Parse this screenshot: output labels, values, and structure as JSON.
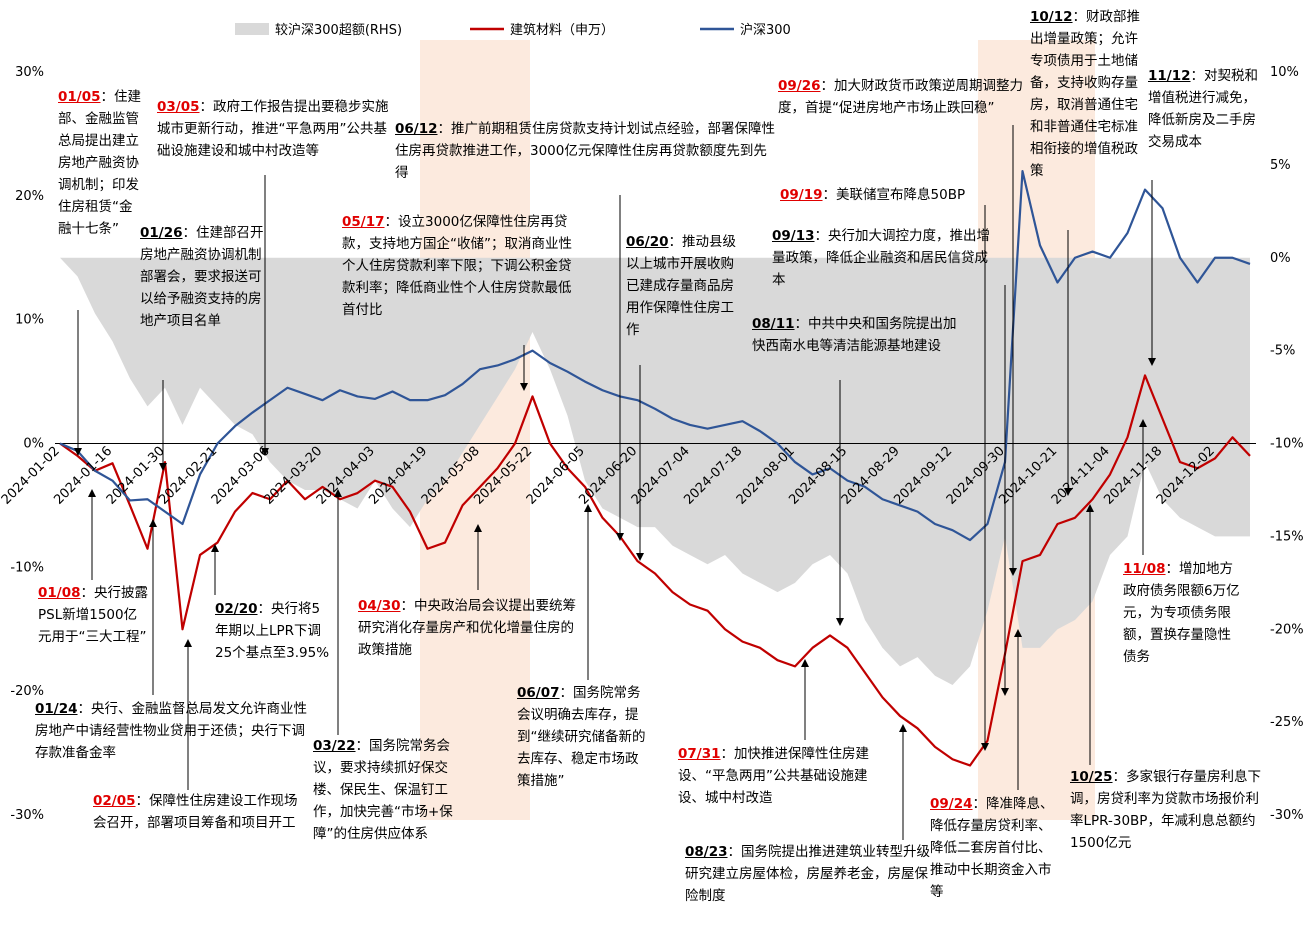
{
  "chart_data": {
    "type": "line",
    "categories": [
      "2024-01-02",
      null,
      null,
      "2024-01-16",
      null,
      null,
      "2024-01-30",
      null,
      null,
      "2024-02-21",
      null,
      null,
      "2024-03-06",
      null,
      null,
      "2024-03-20",
      null,
      null,
      "2024-04-03",
      null,
      null,
      "2024-04-19",
      null,
      null,
      "2024-05-08",
      null,
      null,
      "2024-05-22",
      null,
      null,
      "2024-06-05",
      null,
      null,
      "2024-06-20",
      null,
      null,
      "2024-07-04",
      null,
      null,
      "2024-07-18",
      null,
      null,
      "2024-08-01",
      null,
      null,
      "2024-08-15",
      null,
      null,
      "2024-08-29",
      null,
      null,
      "2024-09-12",
      null,
      null,
      "2024-09-30",
      null,
      null,
      "2024-10-21",
      null,
      null,
      "2024-11-04",
      null,
      null,
      "2024-11-18",
      null,
      null,
      "2024-12-02",
      null,
      null
    ],
    "series": [
      {
        "name": "较沪深300超额(RHS)",
        "type": "area",
        "axis": "y2",
        "color": "#d9d9d9",
        "values": [
          0,
          -1,
          -3,
          -4.5,
          -6.5,
          -8,
          -7,
          -9,
          -7,
          -8,
          -9,
          -9.5,
          -11,
          -12,
          -12.5,
          -12.5,
          -13,
          -13.5,
          -12,
          -13.5,
          -14.5,
          -13,
          -12,
          -10.5,
          -9,
          -7.5,
          -6,
          -4,
          -6,
          -8.5,
          -12,
          -13.5,
          -14,
          -14.5,
          -14.5,
          -15.5,
          -16,
          -16.5,
          -16,
          -17,
          -17.5,
          -18,
          -17.5,
          -16.5,
          -16,
          -17,
          -19.5,
          -21,
          -22,
          -21.5,
          -22.5,
          -23,
          -22,
          -19,
          -15,
          -21,
          -21,
          -20,
          -19.5,
          -18.5,
          -16,
          -15,
          -11,
          -13,
          -14,
          -14.5,
          -15,
          -15,
          -15
        ]
      },
      {
        "name": "建筑材料（申万）",
        "type": "line",
        "color": "#c00000",
        "values": [
          0,
          -1,
          -2.2,
          -1.6,
          -5,
          -8.5,
          -1.5,
          -15,
          -9,
          -8,
          -5.5,
          -4,
          -4.5,
          -3,
          -4.5,
          -3.5,
          -4.5,
          -4,
          -3,
          -3.5,
          -5.5,
          -8.5,
          -8,
          -5,
          -3.5,
          -2,
          0,
          3.8,
          0,
          -2,
          -3.5,
          -6,
          -7.5,
          -9.5,
          -10.5,
          -12,
          -13,
          -13.5,
          -15,
          -16,
          -16.5,
          -17.5,
          -18,
          -16.5,
          -15.5,
          -16.5,
          -18.5,
          -20.5,
          -22,
          -23,
          -24.5,
          -25.5,
          -26,
          -24,
          -17,
          -9.5,
          -9,
          -6.5,
          -6,
          -4.5,
          -2.5,
          0.5,
          5.5,
          2,
          -1.5,
          -2,
          -1.2,
          0.5,
          -1
        ]
      },
      {
        "name": "沪深300",
        "type": "line",
        "color": "#2f5597",
        "values": [
          0,
          -0.6,
          -2.2,
          -3,
          -4.6,
          -4.5,
          -5.5,
          -6.5,
          -2.5,
          0,
          1.4,
          2.5,
          3.5,
          4.5,
          4,
          3.5,
          4.3,
          3.8,
          3.6,
          4.2,
          3.5,
          3.5,
          3.9,
          4.8,
          6,
          6.3,
          6.8,
          7.5,
          6.5,
          5.8,
          5,
          4.3,
          3.8,
          3.5,
          2.8,
          2,
          1.5,
          1.2,
          1.5,
          1.8,
          1,
          0,
          -1.5,
          -2.5,
          -2,
          -3,
          -3.5,
          -4.5,
          -5,
          -5.5,
          -6.5,
          -7,
          -7.8,
          -6.5,
          -1.5,
          22,
          16,
          13,
          15,
          15.5,
          15,
          17,
          20.5,
          19,
          15,
          13,
          15,
          15,
          14.5
        ]
      }
    ],
    "ylim": [
      -30,
      30
    ],
    "yticks": [
      {
        "value": 30,
        "label": "30%"
      },
      {
        "value": 20,
        "label": "20%"
      },
      {
        "value": 10,
        "label": "10%"
      },
      {
        "value": 0,
        "label": "0%"
      },
      {
        "value": -10,
        "label": "-10%"
      },
      {
        "value": -20,
        "label": "-20%"
      },
      {
        "value": -30,
        "label": "-30%"
      }
    ],
    "y2lim": [
      -30,
      10
    ],
    "y2ticks": [
      {
        "value": 10,
        "label": "10%"
      },
      {
        "value": 5,
        "label": "5%"
      },
      {
        "value": 0,
        "label": "0%"
      },
      {
        "value": -5,
        "label": "-5%"
      },
      {
        "value": -10,
        "label": "-10%"
      },
      {
        "value": -15,
        "label": "-15%"
      },
      {
        "value": -20,
        "label": "-20%"
      },
      {
        "value": -25,
        "label": "-25%"
      },
      {
        "value": -30,
        "label": "-30%"
      }
    ],
    "annotations": [
      {
        "date": "01/05",
        "color": "#e00000",
        "text": "：住建部、金融监管总局提出建立房地产融资协调机制；印发住房租赁“金融十七条”"
      },
      {
        "date": "03/05",
        "color": "#e00000",
        "text": "：政府工作报告提出要稳步实施城市更新行动，推进“平急两用”公共基础设施建设和城中村改造等"
      },
      {
        "date": "06/12",
        "color": "#000000",
        "text": "：推广前期租赁住房贷款支持计划试点经验，部署保障性住房再贷款推进工作，3000亿元保障性住房再贷款额度先到先得"
      },
      {
        "date": "01/26",
        "color": "#000000",
        "text": "：住建部召开房地产融资协调机制部署会，要求报送可以给予融资支持的房地产项目名单"
      },
      {
        "date": "05/17",
        "color": "#e00000",
        "text": "：设立3000亿保障性住房再贷款，支持地方国企“收储”；取消商业性个人住房贷款利率下限；下调公积金贷款利率；降低商业性个人住房贷款最低首付比"
      },
      {
        "date": "06/20",
        "color": "#000000",
        "text": "：推动县级以上城市开展收购已建成存量商品房用作保障性住房工作"
      },
      {
        "date": "09/26",
        "color": "#e00000",
        "text": "：加大财政货币政策逆周期调整力度，首提“促进房地产市场止跌回稳”"
      },
      {
        "date": "09/19",
        "color": "#e00000",
        "text": "：美联储宣布降息50BP"
      },
      {
        "date": "09/13",
        "color": "#000000",
        "text": "：央行加大调控力度，推出增量政策，降低企业融资和居民信贷成本"
      },
      {
        "date": "08/11",
        "color": "#000000",
        "text": "：中共中央和国务院提出加快西南水电等清洁能源基地建设"
      },
      {
        "date": "10/12",
        "color": "#000000",
        "text": "：财政部推出增量政策；允许专项债用于土地储备，支持收购存量房，取消普通住宅和非普通住宅标准相衔接的增值税政策"
      },
      {
        "date": "11/12",
        "color": "#000000",
        "text": "：对契税和增值税进行减免，降低新房及二手房交易成本"
      },
      {
        "date": "01/08",
        "color": "#e00000",
        "text": "：央行披露PSL新增1500亿元用于“三大工程”"
      },
      {
        "date": "02/20",
        "color": "#000000",
        "text": "：央行将5年期以上LPR下调25个基点至3.95%"
      },
      {
        "date": "04/30",
        "color": "#e00000",
        "text": "：中央政治局会议提出要统筹研究消化存量房产和优化增量住房的政策措施"
      },
      {
        "date": "01/24",
        "color": "#000000",
        "text": "：央行、金融监督总局发文允许商业性房地产中请经营性物业贷用于还债；央行下调存款准备金率"
      },
      {
        "date": "02/05",
        "color": "#e00000",
        "text": "：保障性住房建设工作现场会召开，部署项目筹备和项目开工"
      },
      {
        "date": "03/22",
        "color": "#000000",
        "text": "：国务院常务会议，要求持续抓好保交楼、保民生、保温钉工作，加快完善“市场+保障”的住房供应体系"
      },
      {
        "date": "06/07",
        "color": "#000000",
        "text": "：国务院常务会议明确去库存，提到“继续研究储备新的去库存、稳定市场政策措施”"
      },
      {
        "date": "07/31",
        "color": "#e00000",
        "text": "：加快推进保障性住房建设、“平急两用”公共基础设施建设、城中村改造"
      },
      {
        "date": "08/23",
        "color": "#000000",
        "text": "：国务院提出推进建筑业转型升级研究建立房屋体检，房屋养老金，房屋保险制度"
      },
      {
        "date": "09/24",
        "color": "#e00000",
        "text": "：降准降息、降低存量房贷利率、降低二套房首付比、推动中长期资金入市等"
      },
      {
        "date": "11/08",
        "color": "#e00000",
        "text": "：增加地方政府债务限额6万亿元，为专项债务限额，置换存量隐性债务"
      },
      {
        "date": "10/25",
        "color": "#000000",
        "text": "：多家银行存量房利息下调，房贷利率为贷款市场报价利率LPR-30BP，年减利息总额约1500亿元"
      }
    ]
  }
}
